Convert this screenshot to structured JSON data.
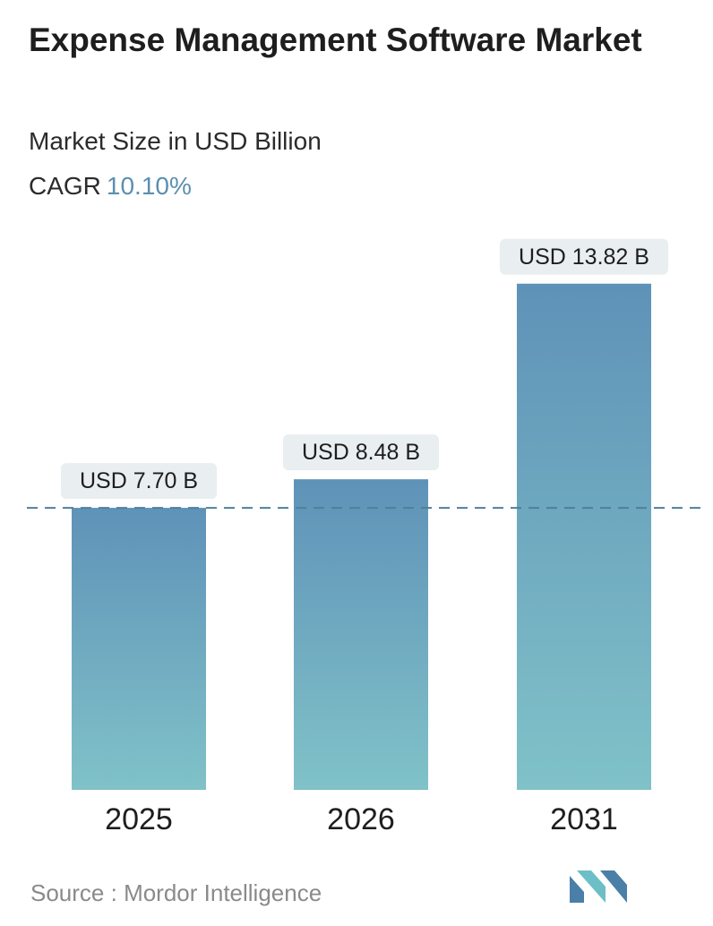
{
  "header": {
    "title": "Expense Management Software Market",
    "subtitle": "Market Size in USD Billion",
    "cagr_label": "CAGR",
    "cagr_value": "10.10%"
  },
  "footer": {
    "source_label": "Source :",
    "source_name": "Mordor Intelligence"
  },
  "colors": {
    "bar_top": "#5f92b8",
    "bar_bottom": "#80c2c8",
    "label_bg": "#e9eef0",
    "dashed_line": "#4e7f9d",
    "logo_dark": "#4a7fa8",
    "logo_light": "#6dbfc7"
  },
  "chart_data": {
    "type": "bar",
    "categories": [
      "2025",
      "2026",
      "2031"
    ],
    "values": [
      7.7,
      8.48,
      13.82
    ],
    "data_labels": [
      "USD 7.70 B",
      "USD 8.48 B",
      "USD 13.82 B"
    ],
    "unit": "USD Billion",
    "reference_line_value": 7.7,
    "grid": false,
    "legend": "none"
  }
}
